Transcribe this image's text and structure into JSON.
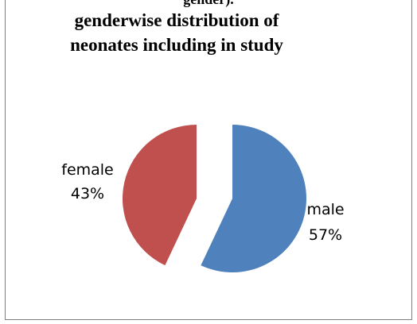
{
  "chart_data": {
    "type": "pie",
    "title_clipped": "gender).",
    "title_lines": [
      "genderwise distribution of",
      "neonates including in study"
    ],
    "slices": [
      {
        "category": "male",
        "percent_label": "57%",
        "value": 57,
        "color": "#4F81BD"
      },
      {
        "category": "female",
        "percent_label": "43%",
        "value": 43,
        "color": "#C0504D"
      }
    ],
    "exploded": true,
    "legend": "none",
    "data_labels": "category and percentage"
  }
}
